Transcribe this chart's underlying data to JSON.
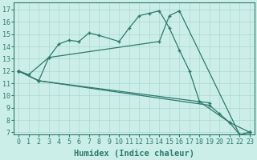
{
  "xlabel": "Humidex (Indice chaleur)",
  "bg_color": "#cceee8",
  "line_color": "#2d7a6e",
  "grid_color": "#aad8d0",
  "xlim": [
    -0.5,
    23.5
  ],
  "ylim": [
    6.8,
    17.6
  ],
  "xticks": [
    0,
    1,
    2,
    3,
    4,
    5,
    6,
    7,
    8,
    9,
    10,
    11,
    12,
    13,
    14,
    15,
    16,
    17,
    18,
    19,
    20,
    21,
    22,
    23
  ],
  "yticks": [
    7,
    8,
    9,
    10,
    11,
    12,
    13,
    14,
    15,
    16,
    17
  ],
  "series1_x": [
    0,
    1,
    3,
    4,
    5,
    6,
    7,
    8,
    10,
    11,
    12,
    13,
    14,
    15,
    16,
    17,
    18,
    19
  ],
  "series1_y": [
    12.0,
    11.7,
    13.1,
    14.2,
    14.5,
    14.4,
    15.1,
    14.9,
    14.4,
    15.5,
    16.5,
    16.7,
    16.9,
    15.5,
    13.7,
    12.0,
    9.5,
    9.4
  ],
  "series2_x": [
    0,
    2,
    3,
    14,
    15,
    16,
    22,
    23
  ],
  "series2_y": [
    12.0,
    11.2,
    13.1,
    14.4,
    16.5,
    16.9,
    6.8,
    7.0
  ],
  "series3_x": [
    0,
    2,
    19,
    20,
    21,
    22,
    23
  ],
  "series3_y": [
    12.0,
    11.2,
    9.2,
    8.5,
    7.8,
    6.8,
    7.0
  ],
  "series4_x": [
    0,
    2,
    18,
    21,
    23
  ],
  "series4_y": [
    12.0,
    11.2,
    9.5,
    7.8,
    7.0
  ],
  "font_family": "monospace",
  "tick_fontsize": 6,
  "label_fontsize": 7.5
}
